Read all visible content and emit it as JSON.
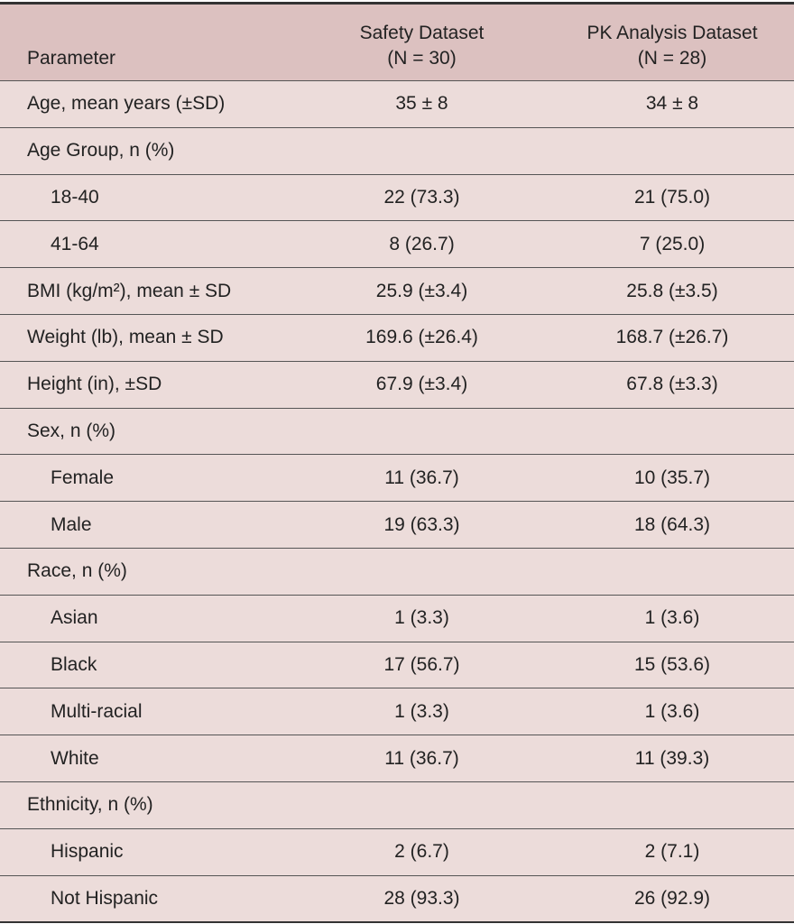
{
  "table": {
    "header": [
      [
        "Parameter"
      ],
      [
        "Safety Dataset",
        "(N = 30)"
      ],
      [
        "PK Analysis Dataset",
        "(N = 28)"
      ]
    ],
    "rows": [
      {
        "level": 0,
        "cells": [
          "Age, mean years (±SD)",
          "35 ± 8",
          "34 ± 8"
        ]
      },
      {
        "level": 0,
        "cells": [
          "Age Group, n (%)"
        ]
      },
      {
        "level": 1,
        "cells": [
          "18-40",
          "22 (73.3)",
          "21 (75.0)"
        ]
      },
      {
        "level": 1,
        "cells": [
          "41-64",
          "8 (26.7)",
          "7 (25.0)"
        ]
      },
      {
        "level": 0,
        "cells": [
          "BMI (kg/m²), mean ± SD",
          "25.9 (±3.4)",
          "25.8 (±3.5)"
        ]
      },
      {
        "level": 0,
        "cells": [
          "Weight (lb), mean ± SD",
          "169.6 (±26.4)",
          "168.7 (±26.7)"
        ]
      },
      {
        "level": 0,
        "cells": [
          "Height (in), ±SD",
          "67.9 (±3.4)",
          "67.8 (±3.3)"
        ]
      },
      {
        "level": 0,
        "cells": [
          "Sex, n (%)"
        ]
      },
      {
        "level": 1,
        "cells": [
          "Female",
          "11 (36.7)",
          "10 (35.7)"
        ]
      },
      {
        "level": 1,
        "cells": [
          "Male",
          "19 (63.3)",
          "18 (64.3)"
        ]
      },
      {
        "level": 0,
        "cells": [
          "Race, n (%)"
        ]
      },
      {
        "level": 1,
        "cells": [
          "Asian",
          "1 (3.3)",
          "1 (3.6)"
        ]
      },
      {
        "level": 1,
        "cells": [
          "Black",
          "17 (56.7)",
          "15 (53.6)"
        ]
      },
      {
        "level": 1,
        "cells": [
          "Multi-racial",
          "1 (3.3)",
          "1 (3.6)"
        ]
      },
      {
        "level": 1,
        "cells": [
          "White",
          "11 (36.7)",
          "11 (39.3)"
        ]
      },
      {
        "level": 0,
        "cells": [
          "Ethnicity, n (%)"
        ]
      },
      {
        "level": 1,
        "cells": [
          "Hispanic",
          "2 (6.7)",
          "2 (7.1)"
        ]
      },
      {
        "level": 1,
        "cells": [
          "Not Hispanic",
          "28 (93.3)",
          "26 (92.9)"
        ]
      }
    ]
  }
}
